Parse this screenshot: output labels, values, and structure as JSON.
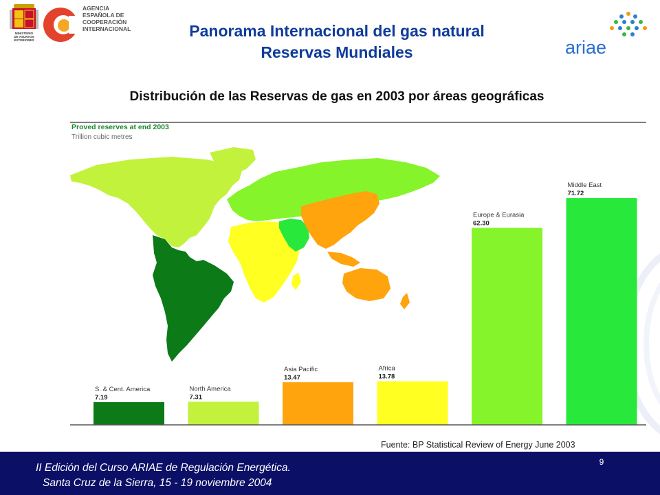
{
  "header": {
    "agency_lines": [
      "AGENCIA",
      "ESPAÑOLA DE",
      "COOPERACIÓN",
      "INTERNACIONAL"
    ],
    "ministry_label": "MINISTERIO DE ASUNTOS EXTERIORES",
    "title_line1": "Panorama Internacional del gas natural",
    "title_line2": "Reservas Mundiales",
    "ariae_logo_text": "ariae"
  },
  "subtitle": "Distribución de las Reservas de gas en 2003 por áreas geográficas",
  "chart_data": {
    "type": "bar",
    "title": "Proved reserves at end 2003",
    "subtitle": "Trillion cubic metres",
    "categories": [
      "S. & Cent. America",
      "North America",
      "Asia Pacific",
      "Africa",
      "Europe & Eurasia",
      "Middle East"
    ],
    "values": [
      7.19,
      7.31,
      13.47,
      13.78,
      62.3,
      71.72
    ],
    "value_labels": [
      "7.19",
      "7.31",
      "13.47",
      "13.78",
      "62.30",
      "71.72"
    ],
    "colors": [
      "#0b7a17",
      "#c2f23b",
      "#ffa40d",
      "#ffff22",
      "#86f42a",
      "#28e83c"
    ],
    "title_color": "#1c8a2e",
    "ylim": [
      0,
      80
    ],
    "grid": false
  },
  "source": "Fuente: BP Statistical Review of Energy June 2003",
  "footer": {
    "line1": "II Edición del Curso ARIAE de Regulación Energética.",
    "line2": "Santa Cruz de la Sierra, 15 - 19 noviembre 2004",
    "page_number": "9"
  }
}
